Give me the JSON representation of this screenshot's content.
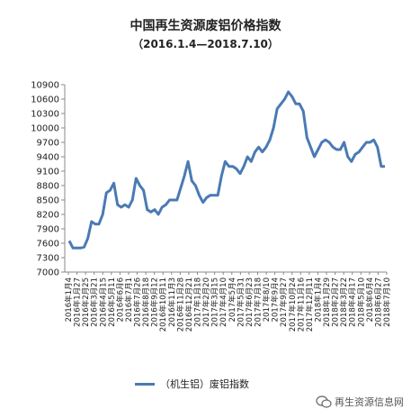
{
  "chart_data": {
    "type": "line",
    "title": "中国再生资源废铝价格指数",
    "subtitle": "（2016.1.4—2018.7.10）",
    "xlabel": "",
    "ylabel": "",
    "ylim": [
      7000,
      10900
    ],
    "yticks": [
      7000,
      7300,
      7600,
      7900,
      8200,
      8500,
      8800,
      9100,
      9400,
      9700,
      10000,
      10300,
      10600,
      10900
    ],
    "grid": false,
    "legend_position": "bottom",
    "color": "#4a7ab4",
    "xtick_labels": [
      "2016年1月4",
      "2016年1月27",
      "2016年2月25",
      "2016年3月21",
      "2016年4月15",
      "2016年5月11",
      "2016年6月6",
      "2016年7月1",
      "2016年7月26",
      "2016年8月18",
      "2016年9月12",
      "2016年10月11",
      "2016年11月3",
      "2016年11月28",
      "2016年12月21",
      "2017年1月18",
      "2017年2月20",
      "2017年3月15",
      "2017年4月10",
      "2017年5月4",
      "2017年5月31",
      "2017年6月23",
      "2017年7月18",
      "2017年8/10",
      "2017年9月4",
      "2017年9月27",
      "2017年10月24",
      "2017年11月16",
      "2017年12月11",
      "2018年1月4",
      "2018年1月29",
      "2018年2月27",
      "2018年3月22",
      "2018年4月17",
      "2018年5月10",
      "2018年6月4",
      "2018年6月27",
      "2018年7月10"
    ],
    "series": [
      {
        "name": "（机生铝）废铝指数",
        "values": [
          7650,
          7500,
          7500,
          7500,
          7520,
          7700,
          8050,
          8000,
          8000,
          8200,
          8650,
          8700,
          8850,
          8400,
          8350,
          8400,
          8350,
          8500,
          8950,
          8800,
          8700,
          8300,
          8250,
          8300,
          8200,
          8350,
          8400,
          8500,
          8500,
          8500,
          8750,
          9000,
          9300,
          8900,
          8800,
          8600,
          8450,
          8550,
          8600,
          8600,
          8600,
          9000,
          9300,
          9200,
          9200,
          9150,
          9050,
          9200,
          9400,
          9300,
          9500,
          9600,
          9500,
          9600,
          9750,
          10000,
          10400,
          10500,
          10600,
          10750,
          10650,
          10500,
          10500,
          10350,
          9800,
          9600,
          9400,
          9550,
          9700,
          9750,
          9700,
          9600,
          9550,
          9550,
          9700,
          9400,
          9300,
          9450,
          9500,
          9600,
          9700,
          9700,
          9750,
          9600,
          9200,
          9200
        ]
      }
    ]
  },
  "legend": {
    "label": "（机生铝）废铝指数"
  },
  "watermark": {
    "text": "再生资源信息网"
  }
}
